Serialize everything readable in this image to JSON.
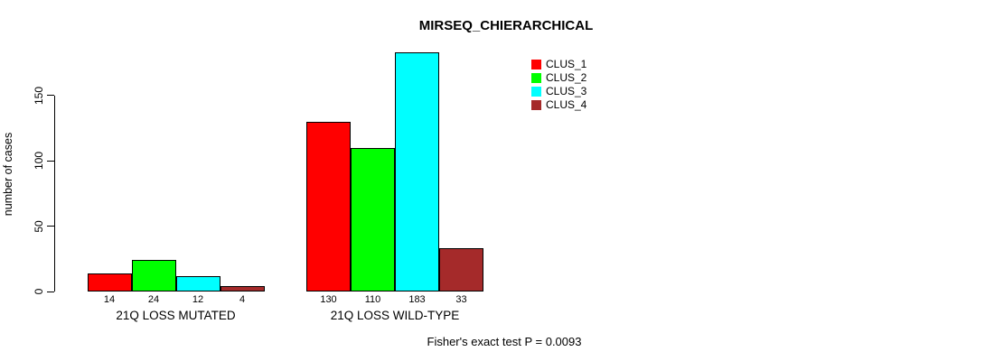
{
  "chart_data": {
    "type": "bar",
    "title": "MIRSEQ_CHIERARCHICAL",
    "xlabel": "",
    "ylabel": "number of cases",
    "ylim": [
      0,
      150
    ],
    "yticks": [
      0,
      50,
      100,
      150
    ],
    "grid": false,
    "legend_position": "top-right",
    "categories": [
      "21Q LOSS MUTATED",
      "21Q LOSS WILD-TYPE"
    ],
    "series": [
      {
        "name": "CLUS_1",
        "color": "#ff0000",
        "values": [
          14,
          130
        ]
      },
      {
        "name": "CLUS_2",
        "color": "#00ff00",
        "values": [
          24,
          110
        ]
      },
      {
        "name": "CLUS_3",
        "color": "#00ffff",
        "values": [
          12,
          183
        ]
      },
      {
        "name": "CLUS_4",
        "color": "#a52a2a",
        "values": [
          4,
          33
        ]
      }
    ],
    "bar_value_labels": [
      [
        "14",
        "24",
        "12",
        "4"
      ],
      [
        "130",
        "110",
        "183",
        "33"
      ]
    ],
    "annotation": "Fisher's exact test P = 0.0093"
  },
  "colors": {
    "axis": "#000000",
    "bar_border": "#000000",
    "background": "#ffffff"
  }
}
